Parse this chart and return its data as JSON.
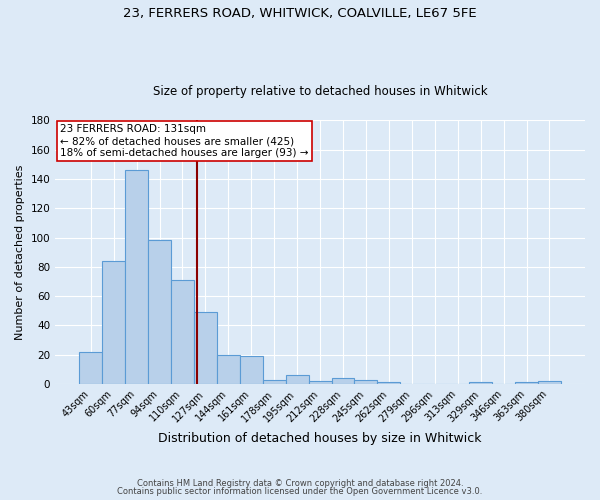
{
  "title_line1": "23, FERRERS ROAD, WHITWICK, COALVILLE, LE67 5FE",
  "title_line2": "Size of property relative to detached houses in Whitwick",
  "xlabel": "Distribution of detached houses by size in Whitwick",
  "ylabel": "Number of detached properties",
  "footnote1": "Contains HM Land Registry data © Crown copyright and database right 2024.",
  "footnote2": "Contains public sector information licensed under the Open Government Licence v3.0.",
  "bar_labels": [
    "43sqm",
    "60sqm",
    "77sqm",
    "94sqm",
    "110sqm",
    "127sqm",
    "144sqm",
    "161sqm",
    "178sqm",
    "195sqm",
    "212sqm",
    "228sqm",
    "245sqm",
    "262sqm",
    "279sqm",
    "296sqm",
    "313sqm",
    "329sqm",
    "346sqm",
    "363sqm",
    "380sqm"
  ],
  "bar_values": [
    22,
    84,
    146,
    98,
    71,
    49,
    20,
    19,
    3,
    6,
    2,
    4,
    3,
    1,
    0,
    0,
    0,
    1,
    0,
    1,
    2
  ],
  "bar_color": "#b8d0ea",
  "bar_edge_color": "#5b9bd5",
  "background_color": "#ddeaf7",
  "plot_bg_color": "#ddeaf7",
  "grid_color": "#ffffff",
  "vline_x": 5.5,
  "vline_color": "#8b0000",
  "annotation_text": "23 FERRERS ROAD: 131sqm\n← 82% of detached houses are smaller (425)\n18% of semi-detached houses are larger (93) →",
  "annotation_box_color": "#ffffff",
  "annotation_border_color": "#cc0000",
  "ylim": [
    0,
    180
  ],
  "yticks": [
    0,
    20,
    40,
    60,
    80,
    100,
    120,
    140,
    160,
    180
  ],
  "title1_fontsize": 9.5,
  "title2_fontsize": 8.5,
  "ylabel_fontsize": 8,
  "xlabel_fontsize": 9,
  "tick_fontsize": 7,
  "annot_fontsize": 7.5,
  "footnote_fontsize": 6
}
